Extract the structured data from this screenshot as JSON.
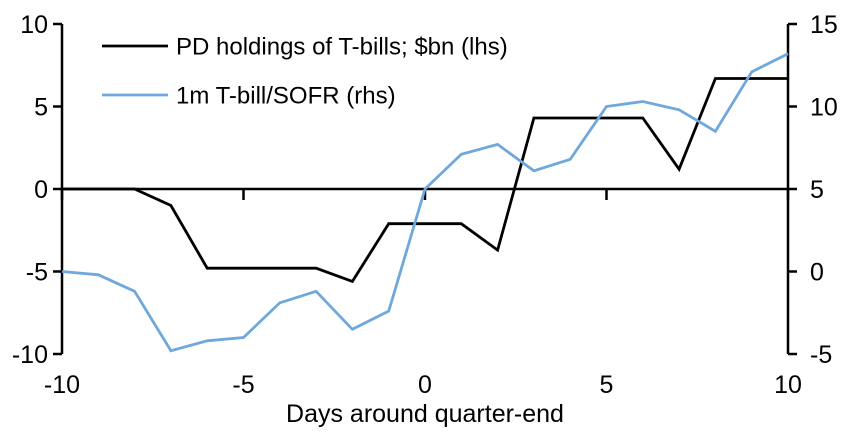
{
  "chart_data": {
    "type": "line",
    "title": "",
    "xlabel": "Days around quarter-end",
    "ylabel_left": "",
    "ylabel_right": "",
    "grid": false,
    "legend_position": "top-left-inside",
    "background_color": "#FFFFFF",
    "axis_color": "#000000",
    "text_color": "#000000",
    "x": [
      -10,
      -9,
      -8,
      -7,
      -6,
      -5,
      -4,
      -3,
      -2,
      -1,
      0,
      1,
      2,
      3,
      4,
      5,
      6,
      7,
      8,
      9,
      10
    ],
    "series": [
      {
        "name": "PD holdings of T-bills; $bn (lhs)",
        "axis": "left",
        "color": "#000000",
        "values": [
          0.0,
          0.0,
          0.0,
          -1.0,
          -4.8,
          -4.8,
          -4.8,
          -4.8,
          -5.6,
          -2.1,
          -2.1,
          -2.1,
          -3.7,
          4.3,
          4.3,
          4.3,
          4.3,
          1.2,
          6.7,
          6.7,
          6.7
        ]
      },
      {
        "name": "1m T-bill/SOFR (rhs)",
        "axis": "right",
        "color": "#6FA8DC",
        "values": [
          0.0,
          -0.2,
          -1.2,
          -4.8,
          -4.2,
          -4.0,
          -1.9,
          -1.2,
          -3.5,
          -2.4,
          5.0,
          7.1,
          7.7,
          6.1,
          6.8,
          10.0,
          10.3,
          9.8,
          8.5,
          12.1,
          13.2
        ]
      }
    ],
    "left_axis": {
      "min": -10,
      "max": 10,
      "ticks": [
        10,
        5,
        0,
        -5,
        -10
      ]
    },
    "right_axis": {
      "min": -5,
      "max": 15,
      "ticks": [
        15,
        10,
        5,
        0,
        -5
      ]
    },
    "x_axis": {
      "min": -10,
      "max": 10,
      "ticks": [
        -10,
        -5,
        0,
        5,
        10
      ]
    }
  }
}
